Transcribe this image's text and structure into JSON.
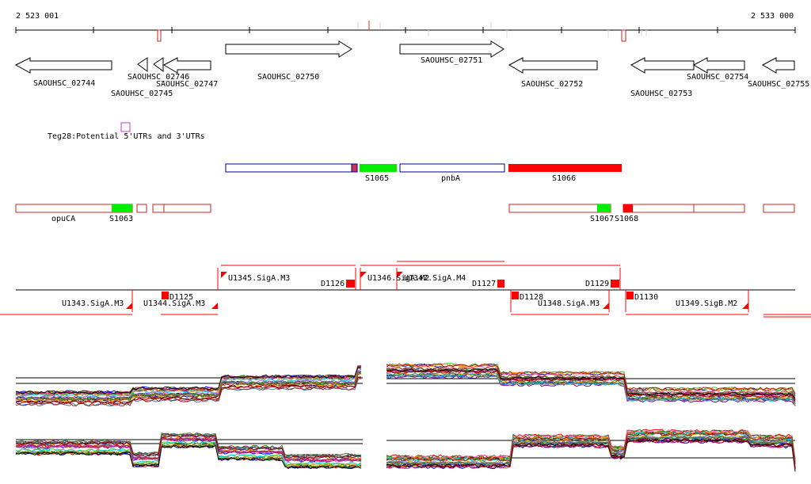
{
  "ruler": {
    "start_label": "2 523 001",
    "end_label": "2 533 000"
  },
  "genes": {
    "g2744": "SAOUHSC_02744",
    "g2745": "SAOUHSC_02745",
    "g2746": "SAOUHSC_02746",
    "g2747": "SAOUHSC_02747",
    "g2750": "SAOUHSC_02750",
    "g2751": "SAOUHSC_02751",
    "g2752": "SAOUHSC_02752",
    "g2753": "SAOUHSC_02753",
    "g2754": "SAOUHSC_02754",
    "g2755": "SAOUHSC_02755"
  },
  "teg_label": "Teg28:Potential 5'UTRs and 3'UTRs",
  "features": {
    "S1065": "S1065",
    "pnbA": "pnbA",
    "S1066": "S1066",
    "opuCA": "opuCA",
    "S1063": "S1063",
    "S1067": "S1067",
    "S1068": "S1068"
  },
  "segments": {
    "U1343": "U1343.SigA.M3",
    "U1344": "U1344.SigA.M3",
    "U1345": "U1345.SigA.M3",
    "U1346": "U1346.SigA.M2",
    "U1347": "U1347.SigA.M4",
    "U1348": "U1348.SigA.M3",
    "U1349": "U1349.SigB.M2",
    "D1125": "D1125",
    "D1126": "D1126",
    "D1127": "D1127",
    "D1128": "D1128",
    "D1129": "D1129",
    "D1130": "D1130"
  },
  "colors": {
    "red": "#ff0000",
    "green": "#00ee00",
    "blue": "#00008b",
    "magenta": "#cc33cc",
    "axis": "#000000"
  }
}
